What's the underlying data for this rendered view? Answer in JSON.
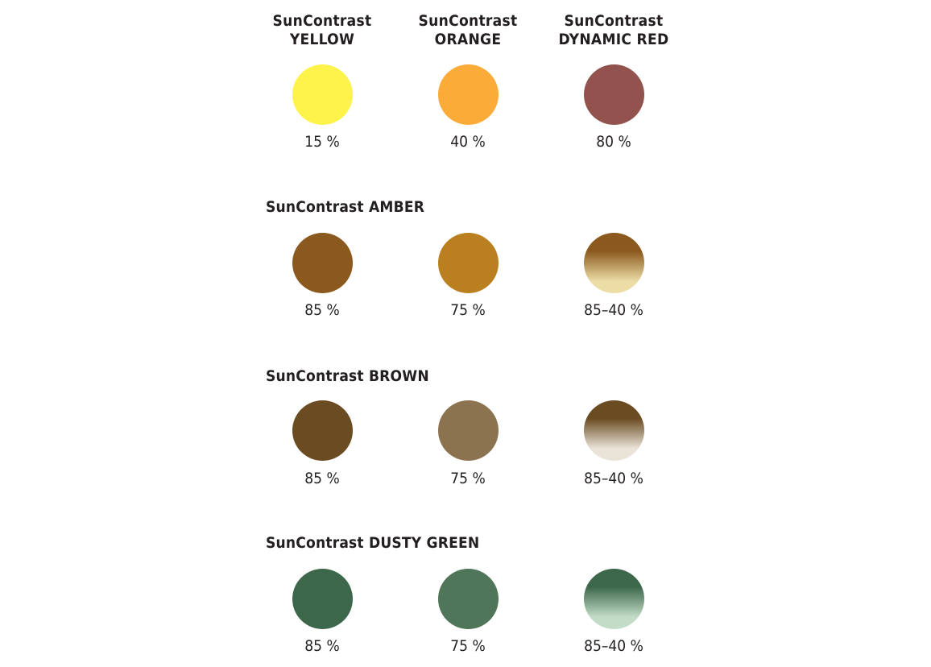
{
  "top_row": {
    "items": [
      {
        "label": "SunContrast\nYELLOW",
        "percent": "15 %",
        "color": "#fef34b"
      },
      {
        "label": "SunContrast\nORANGE",
        "percent": "40 %",
        "color": "#fbab37"
      },
      {
        "label": "SunContrast\nDYNAMIC RED",
        "percent": "80 %",
        "color": "#92524d"
      }
    ]
  },
  "sections": [
    {
      "title": "SunContrast AMBER",
      "items": [
        {
          "percent": "85 %",
          "color": "#8b591d"
        },
        {
          "percent": "75 %",
          "color": "#ba7f1e"
        },
        {
          "percent": "85–40 %",
          "gradient_top": "#8b591d",
          "gradient_bottom": "#ecdca6"
        }
      ]
    },
    {
      "title": "SunContrast BROWN",
      "items": [
        {
          "percent": "85 %",
          "color": "#6b4b22"
        },
        {
          "percent": "75 %",
          "color": "#8c7350"
        },
        {
          "percent": "85–40 %",
          "gradient_top": "#6b4b22",
          "gradient_bottom": "#eae4d8"
        }
      ]
    },
    {
      "title": "SunContrast DUSTY GREEN",
      "items": [
        {
          "percent": "85 %",
          "color": "#3d674a"
        },
        {
          "percent": "75 %",
          "color": "#50765a"
        },
        {
          "percent": "85–40 %",
          "gradient_top": "#3d674a",
          "gradient_bottom": "#c2dcc8"
        }
      ]
    }
  ]
}
